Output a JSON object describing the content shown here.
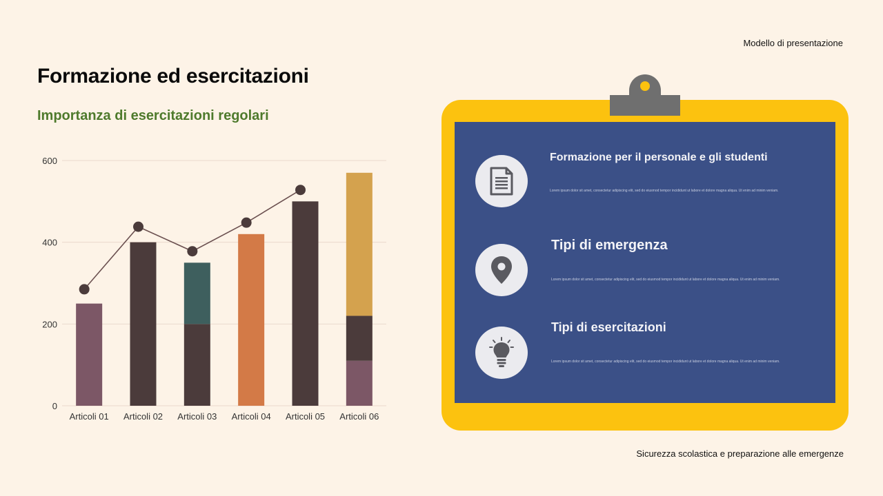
{
  "header": {
    "label": "Modello di presentazione"
  },
  "footer": {
    "label": "Sicurezza scolastica e preparazione alle emergenze"
  },
  "title": "Formazione ed esercitazioni",
  "subtitle": "Importanza di esercitazioni regolari",
  "colors": {
    "background": "#fdf3e7",
    "board": "#3b5087",
    "frame": "#fcc20f",
    "subtitle": "#4e7a2c"
  },
  "chart_data": {
    "type": "bar",
    "categories": [
      "Articoli 01",
      "Articoli 02",
      "Articoli 03",
      "Articoli 04",
      "Articoli 05",
      "Articoli 06"
    ],
    "stacked": true,
    "ylim": [
      0,
      600
    ],
    "yticks": [
      0,
      200,
      400,
      600
    ],
    "grid": true,
    "stacks": [
      [
        {
          "value": 250,
          "color": "#7c5766"
        }
      ],
      [
        {
          "value": 400,
          "color": "#4b3b3b"
        }
      ],
      [
        {
          "value": 200,
          "color": "#4b3b3b"
        },
        {
          "value": 150,
          "color": "#3e5f5e"
        }
      ],
      [
        {
          "value": 420,
          "color": "#d37a47"
        }
      ],
      [
        {
          "value": 500,
          "color": "#4b3b3b"
        }
      ],
      [
        {
          "value": 110,
          "color": "#7c5766"
        },
        {
          "value": 110,
          "color": "#4b3b3b"
        },
        {
          "value": 350,
          "color": "#d4a24e"
        }
      ]
    ],
    "line": {
      "values": [
        285,
        438,
        378,
        448,
        528,
        null
      ],
      "color": "#6b5050",
      "marker_color": "#4b3b3b"
    }
  },
  "board": {
    "items": [
      {
        "icon": "document-icon",
        "title": "Formazione per il personale e gli studenti",
        "desc": "Lorem ipsum dolor sit amet, consectetur adipiscing elit, sed do eiusmod tempor incididunt ut labore et dolore magna aliqua. Ut enim ad minim veniam."
      },
      {
        "icon": "location-pin-icon",
        "title": "Tipi di emergenza",
        "desc": "Lorem ipsum dolor sit amet, consectetur adipiscing elit, sed do eiusmod tempor incididunt ut labore et dolore magna aliqua. Ut enim ad minim veniam."
      },
      {
        "icon": "lightbulb-icon",
        "title": "Tipi di esercitazioni",
        "desc": "Lorem ipsum dolor sit amet, consectetur adipiscing elit, sed do eiusmod tempor incididunt ut labore et dolore magna aliqua. Ut enim ad minim veniam."
      }
    ]
  }
}
